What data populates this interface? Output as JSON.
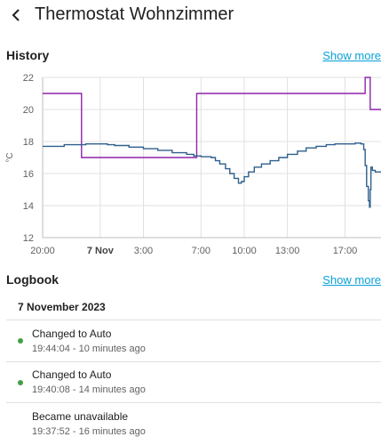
{
  "header": {
    "title": "Thermostat Wohnzimmer",
    "back_icon": "chevron-left-icon"
  },
  "history": {
    "title": "History",
    "show_more": "Show more",
    "chart_data": {
      "type": "line",
      "ylabel": "°C",
      "ylim": [
        12,
        22
      ],
      "y_ticks": [
        "22",
        "20",
        "18",
        "16",
        "14",
        "12"
      ],
      "x_range_hours": [
        0,
        23.5
      ],
      "x_ticks": [
        {
          "label": "20:00",
          "h": 0,
          "bold": false
        },
        {
          "label": "7 Nov",
          "h": 4,
          "bold": true
        },
        {
          "label": "3:00",
          "h": 7,
          "bold": false
        },
        {
          "label": "7:00",
          "h": 11,
          "bold": false
        },
        {
          "label": "10:00",
          "h": 14,
          "bold": false
        },
        {
          "label": "13:00",
          "h": 17,
          "bold": false
        },
        {
          "label": "17:00",
          "h": 21,
          "bold": false
        }
      ],
      "series": [
        {
          "color": "#8e24aa",
          "step": true,
          "points": [
            [
              0,
              21
            ],
            [
              2.7,
              21
            ],
            [
              2.7,
              17
            ],
            [
              10.7,
              17
            ],
            [
              10.7,
              21
            ],
            [
              22.4,
              21
            ],
            [
              22.4,
              22
            ],
            [
              22.75,
              22
            ],
            [
              22.75,
              20
            ],
            [
              23.5,
              20
            ]
          ]
        },
        {
          "color": "#2e5f8c",
          "step": true,
          "points": [
            [
              0,
              17.7
            ],
            [
              1,
              17.7
            ],
            [
              1.5,
              17.8
            ],
            [
              2.5,
              17.8
            ],
            [
              3,
              17.85
            ],
            [
              4.5,
              17.8
            ],
            [
              5,
              17.75
            ],
            [
              6,
              17.65
            ],
            [
              7,
              17.55
            ],
            [
              8,
              17.45
            ],
            [
              9,
              17.3
            ],
            [
              10,
              17.2
            ],
            [
              10.5,
              17.1
            ],
            [
              11,
              17.05
            ],
            [
              11.7,
              17.0
            ],
            [
              12,
              16.8
            ],
            [
              12.3,
              16.6
            ],
            [
              12.7,
              16.3
            ],
            [
              13,
              16.0
            ],
            [
              13.3,
              15.7
            ],
            [
              13.6,
              15.4
            ],
            [
              13.8,
              15.5
            ],
            [
              14,
              15.8
            ],
            [
              14.3,
              16.1
            ],
            [
              14.7,
              16.4
            ],
            [
              15.2,
              16.6
            ],
            [
              15.8,
              16.8
            ],
            [
              16.4,
              17.0
            ],
            [
              17,
              17.2
            ],
            [
              17.7,
              17.4
            ],
            [
              18.3,
              17.6
            ],
            [
              19,
              17.7
            ],
            [
              19.7,
              17.8
            ],
            [
              20.3,
              17.85
            ],
            [
              21,
              17.85
            ],
            [
              21.7,
              17.9
            ],
            [
              22.1,
              17.85
            ],
            [
              22.3,
              17.5
            ],
            [
              22.4,
              16.5
            ],
            [
              22.5,
              15.2
            ],
            [
              22.62,
              14.3
            ],
            [
              22.7,
              13.9
            ],
            [
              22.75,
              15.0
            ],
            [
              22.8,
              16.4
            ],
            [
              22.9,
              16.2
            ],
            [
              23.1,
              16.1
            ],
            [
              23.5,
              16.1
            ]
          ]
        }
      ]
    }
  },
  "logbook": {
    "title": "Logbook",
    "show_more": "Show more",
    "date": "7 November 2023",
    "entries": [
      {
        "message": "Changed to Auto",
        "time": "19:44:04 - 10 minutes ago",
        "dot": true
      },
      {
        "message": "Changed to Auto",
        "time": "19:40:08 - 14 minutes ago",
        "dot": true
      },
      {
        "message": "Became unavailable",
        "time": "19:37:52 - 16 minutes ago",
        "dot": false
      }
    ]
  }
}
